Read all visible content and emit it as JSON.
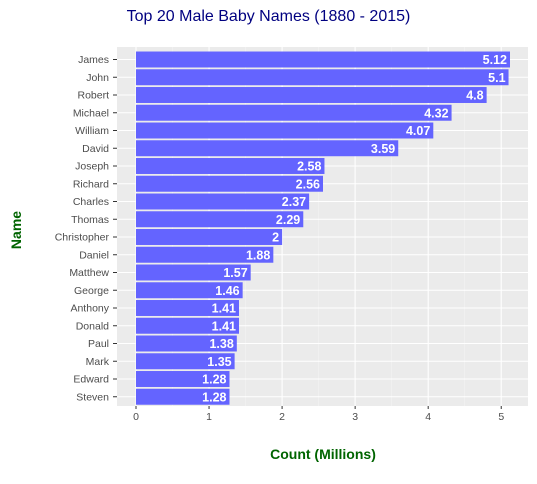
{
  "chart_data": {
    "type": "bar",
    "orientation": "horizontal",
    "title": "Top 20 Male Baby Names (1880 - 2015)",
    "xlabel": "Count (Millions)",
    "ylabel": "Name",
    "xlim": [
      0,
      5.3
    ],
    "xticks": [
      0,
      1,
      2,
      3,
      4,
      5
    ],
    "grid": true,
    "bar_color": "#6464FF",
    "title_color": "#000080",
    "label_color": "#006400",
    "panel_color": "#EBEBEB",
    "categories": [
      "James",
      "John",
      "Robert",
      "Michael",
      "William",
      "David",
      "Joseph",
      "Richard",
      "Charles",
      "Thomas",
      "Christopher",
      "Daniel",
      "Matthew",
      "George",
      "Anthony",
      "Donald",
      "Paul",
      "Mark",
      "Edward",
      "Steven"
    ],
    "values": [
      5.12,
      5.1,
      4.8,
      4.32,
      4.07,
      3.59,
      2.58,
      2.56,
      2.37,
      2.29,
      2,
      1.88,
      1.57,
      1.46,
      1.41,
      1.41,
      1.38,
      1.35,
      1.28,
      1.28
    ],
    "value_labels": [
      "5.12",
      "5.1",
      "4.8",
      "4.32",
      "4.07",
      "3.59",
      "2.58",
      "2.56",
      "2.37",
      "2.29",
      "2",
      "1.88",
      "1.57",
      "1.46",
      "1.41",
      "1.41",
      "1.38",
      "1.35",
      "1.28",
      "1.28"
    ]
  }
}
